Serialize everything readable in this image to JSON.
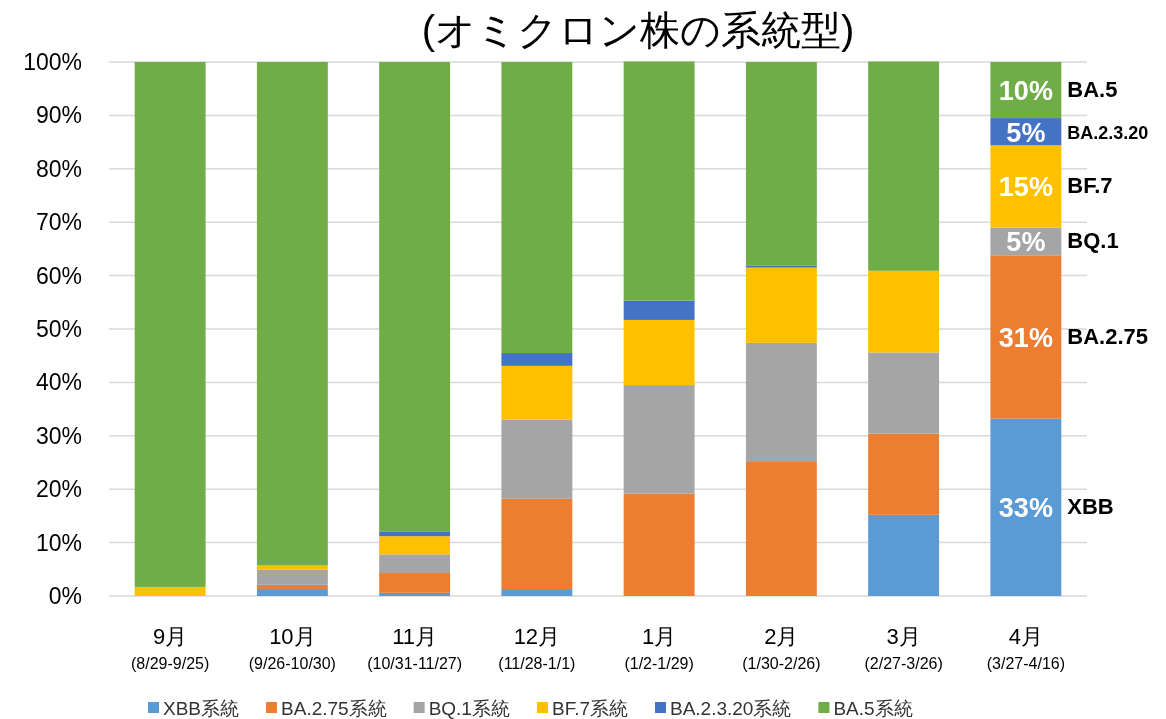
{
  "chart_data": {
    "type": "bar",
    "stacked": true,
    "title": "(オミクロン株の系統型)",
    "categories": [
      "9月\n(8/29-9/25)",
      "10月\n(9/26-10/30)",
      "11月\n(10/31-11/27)",
      "12月\n(11/28-1/1)",
      "1月\n(1/2-1/29)",
      "2月\n(1/30-2/26)",
      "3月\n(2/27-3/26)",
      "4月\n(3/27-4/16)"
    ],
    "series": [
      {
        "name": "XBB系統",
        "color": "#5b9bd5",
        "values": [
          0,
          1.3,
          0.6,
          1.3,
          0,
          0,
          15.2,
          33.2
        ],
        "value_labels": [
          null,
          null,
          null,
          null,
          null,
          null,
          null,
          "33%"
        ]
      },
      {
        "name": "BA.2.75系統",
        "color": "#ed7d31",
        "values": [
          0,
          0.8,
          3.7,
          16.9,
          19.2,
          25.1,
          15.2,
          30.6
        ],
        "value_labels": [
          null,
          null,
          null,
          null,
          null,
          null,
          null,
          "31%"
        ]
      },
      {
        "name": "BQ.1系統",
        "color": "#a5a5a5",
        "values": [
          0,
          2.8,
          3.5,
          14.8,
          20.3,
          22.3,
          15.2,
          5.2
        ],
        "value_labels": [
          null,
          null,
          null,
          null,
          null,
          null,
          null,
          "5%"
        ]
      },
      {
        "name": "BF.7系統",
        "color": "#ffc000",
        "values": [
          1.7,
          0.8,
          3.4,
          10.1,
          12.2,
          14.1,
          15.3,
          15.4
        ],
        "value_labels": [
          null,
          null,
          null,
          null,
          null,
          null,
          null,
          "15%"
        ]
      },
      {
        "name": "BA.2.3.20系統",
        "color": "#4472c4",
        "values": [
          0,
          0,
          0.9,
          2.4,
          3.6,
          0.4,
          0,
          5.1
        ],
        "value_labels": [
          null,
          null,
          null,
          null,
          null,
          null,
          null,
          "5%"
        ]
      },
      {
        "name": "BA.5系統",
        "color": "#70ad47",
        "values": [
          98.3,
          94.3,
          87.9,
          54.5,
          44.8,
          38.1,
          39.2,
          10.5
        ],
        "value_labels": [
          null,
          null,
          null,
          null,
          null,
          null,
          null,
          "10%"
        ]
      }
    ],
    "ylim": [
      0,
      100
    ],
    "yticks": [
      {
        "value": 0,
        "label": "0%"
      },
      {
        "value": 10,
        "label": "10%"
      },
      {
        "value": 20,
        "label": "20%"
      },
      {
        "value": 30,
        "label": "30%"
      },
      {
        "value": 40,
        "label": "40%"
      },
      {
        "value": 50,
        "label": "50%"
      },
      {
        "value": 60,
        "label": "60%"
      },
      {
        "value": 70,
        "label": "70%"
      },
      {
        "value": 80,
        "label": "80%"
      },
      {
        "value": 90,
        "label": "90%"
      },
      {
        "value": 100,
        "label": "100%"
      }
    ],
    "grid": "y",
    "legend": "bottom",
    "annotations": [
      "XBB",
      "BA.2.75",
      "BQ.1",
      "BF.7",
      "BA.2.3.20",
      "BA.5"
    ]
  }
}
